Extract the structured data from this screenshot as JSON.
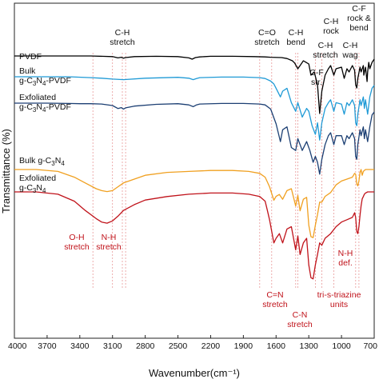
{
  "chart_data": {
    "type": "line",
    "xlabel": "Wavenumber(cm⁻¹)",
    "ylabel": "Transmittance (%)",
    "xlim": [
      4000,
      700
    ],
    "x_reversed": true,
    "x_ticks": [
      "4000",
      "3700",
      "3400",
      "3100",
      "2800",
      "2500",
      "2200",
      "1900",
      "1600",
      "1300",
      "1000",
      "700"
    ],
    "y_ticks": "none",
    "grid": false,
    "series": [
      {
        "name": "PVDF",
        "color": "#000000",
        "x": [
          4000,
          3700,
          3500,
          3300,
          3100,
          3050,
          3020,
          3000,
          2980,
          2900,
          2700,
          2500,
          2400,
          2370,
          2340,
          2300,
          2200,
          2000,
          1800,
          1700,
          1650,
          1550,
          1500,
          1450,
          1430,
          1400,
          1380,
          1350,
          1300,
          1280,
          1250,
          1220,
          1200,
          1180,
          1150,
          1120,
          1100,
          1070,
          1050,
          1000,
          975,
          950,
          930,
          900,
          880,
          870,
          860,
          850,
          830,
          820,
          800,
          795,
          780,
          765,
          760,
          750,
          740,
          720,
          700
        ],
        "y": [
          0.0,
          0.0,
          0.0,
          0.0,
          0.2,
          0.6,
          0.4,
          0.7,
          0.5,
          0.2,
          0.1,
          0.2,
          0.6,
          1.0,
          0.5,
          0.3,
          0.1,
          0.1,
          0.2,
          0.3,
          0.4,
          0.5,
          0.8,
          1.5,
          2.2,
          4.0,
          3.0,
          1.5,
          2.5,
          6.0,
          5.0,
          9.0,
          18.0,
          11.0,
          6.0,
          4.0,
          3.0,
          6.0,
          4.0,
          3.5,
          7.0,
          4.0,
          5.0,
          3.0,
          4.5,
          9.0,
          10.0,
          7.0,
          3.5,
          5.0,
          3.0,
          6.0,
          3.5,
          8.0,
          5.0,
          2.0,
          4.0,
          2.0,
          1.0
        ]
      },
      {
        "name": "Bulk g-C3N4-PVDF",
        "color": "#1f9ad6",
        "x": [
          4000,
          3700,
          3500,
          3300,
          3200,
          3100,
          3000,
          2800,
          2500,
          2400,
          2360,
          2330,
          2300,
          2100,
          1900,
          1750,
          1700,
          1650,
          1620,
          1600,
          1560,
          1540,
          1500,
          1460,
          1420,
          1400,
          1360,
          1320,
          1300,
          1270,
          1240,
          1220,
          1200,
          1180,
          1150,
          1120,
          1100,
          1070,
          1050,
          1000,
          975,
          950,
          930,
          900,
          880,
          870,
          860,
          850,
          830,
          820,
          800,
          790,
          780,
          760,
          740,
          720,
          700
        ],
        "y": [
          0.0,
          0.0,
          0.0,
          0.3,
          0.5,
          0.8,
          1.0,
          0.5,
          0.2,
          0.5,
          1.0,
          0.6,
          0.3,
          0.1,
          0.1,
          0.3,
          0.6,
          1.5,
          2.5,
          4.0,
          7.0,
          5.0,
          4.0,
          9.0,
          12.0,
          9.0,
          14.0,
          11.0,
          12.0,
          17.0,
          20.0,
          16.0,
          22.0,
          16.0,
          11.0,
          9.0,
          8.0,
          12.0,
          9.0,
          9.5,
          13.0,
          9.0,
          10.0,
          8.0,
          10.0,
          16.0,
          17.0,
          13.0,
          8.0,
          10.0,
          7.0,
          11.0,
          8.0,
          13.0,
          7.0,
          4.0,
          3.0
        ]
      },
      {
        "name": "Exfoliated g-C3N4-PVDF",
        "color": "#1c3f73",
        "x": [
          4000,
          3700,
          3500,
          3400,
          3300,
          3200,
          3100,
          3050,
          3020,
          3000,
          2980,
          2900,
          2700,
          2500,
          2400,
          2360,
          2330,
          2300,
          2100,
          1900,
          1750,
          1700,
          1650,
          1600,
          1560,
          1540,
          1500,
          1460,
          1420,
          1400,
          1360,
          1320,
          1290,
          1260,
          1240,
          1220,
          1200,
          1180,
          1150,
          1120,
          1100,
          1070,
          1050,
          1000,
          975,
          950,
          930,
          900,
          880,
          870,
          860,
          850,
          830,
          820,
          800,
          790,
          780,
          760,
          740,
          720,
          700
        ],
        "y": [
          0.0,
          0.0,
          0.1,
          0.2,
          0.2,
          0.3,
          0.8,
          1.8,
          1.5,
          2.0,
          1.6,
          1.0,
          0.4,
          0.2,
          0.6,
          1.2,
          0.6,
          0.3,
          0.1,
          0.1,
          0.3,
          0.6,
          2.0,
          7.0,
          13.0,
          9.0,
          8.0,
          15.0,
          16.0,
          12.0,
          16.0,
          13.0,
          16.0,
          20.0,
          18.0,
          20.0,
          24.0,
          19.0,
          14.0,
          11.0,
          10.0,
          14.0,
          11.0,
          11.0,
          14.0,
          11.0,
          12.0,
          10.0,
          12.0,
          18.0,
          19.0,
          14.0,
          9.0,
          11.0,
          8.0,
          12.0,
          9.0,
          13.0,
          8.0,
          4.0,
          3.0
        ]
      },
      {
        "name": "Bulk g-C3N4",
        "color": "#f0a020",
        "x": [
          4000,
          3800,
          3600,
          3450,
          3350,
          3250,
          3200,
          3150,
          3100,
          3050,
          3000,
          2900,
          2800,
          2600,
          2400,
          2200,
          2000,
          1850,
          1750,
          1700,
          1680,
          1660,
          1640,
          1620,
          1600,
          1570,
          1540,
          1500,
          1460,
          1420,
          1400,
          1380,
          1350,
          1320,
          1300,
          1280,
          1260,
          1240,
          1220,
          1200,
          1180,
          1150,
          1100,
          1050,
          1000,
          950,
          900,
          880,
          870,
          860,
          850,
          840,
          830,
          820,
          810,
          800,
          790,
          780,
          760,
          740,
          720,
          700
        ],
        "y": [
          0.0,
          0.0,
          0.2,
          0.8,
          1.4,
          2.0,
          2.2,
          2.3,
          2.2,
          1.8,
          1.4,
          1.0,
          0.6,
          0.3,
          0.2,
          0.1,
          0.1,
          0.2,
          0.4,
          0.8,
          1.3,
          1.8,
          2.5,
          3.2,
          2.8,
          2.6,
          3.1,
          2.2,
          2.0,
          3.8,
          2.7,
          4.3,
          3.1,
          2.9,
          5.8,
          7.0,
          7.1,
          5.8,
          4.7,
          3.4,
          3.4,
          2.8,
          2.4,
          1.6,
          1.2,
          1.0,
          0.8,
          0.4,
          0.5,
          1.5,
          1.7,
          1.2,
          0.3,
          0.0,
          0.6,
          0.2,
          0.1,
          0.0,
          0.0,
          0.0,
          0.0,
          0.0
        ]
      },
      {
        "name": "Exfoliated g-C3N4",
        "color": "#c0121a",
        "x": [
          4000,
          3800,
          3600,
          3450,
          3350,
          3250,
          3200,
          3150,
          3100,
          3050,
          3000,
          2900,
          2800,
          2600,
          2400,
          2200,
          2000,
          1850,
          1750,
          1700,
          1680,
          1660,
          1640,
          1620,
          1600,
          1570,
          1540,
          1500,
          1460,
          1420,
          1400,
          1380,
          1350,
          1320,
          1300,
          1280,
          1260,
          1240,
          1220,
          1200,
          1180,
          1150,
          1100,
          1050,
          1000,
          950,
          900,
          880,
          870,
          860,
          850,
          840,
          830,
          820,
          810,
          800,
          790,
          780,
          760,
          740,
          720,
          700
        ],
        "y": [
          0.0,
          0.0,
          0.2,
          0.8,
          1.6,
          2.3,
          2.6,
          2.7,
          2.5,
          2.1,
          1.6,
          1.1,
          0.7,
          0.4,
          0.2,
          0.1,
          0.1,
          0.2,
          0.4,
          0.8,
          1.6,
          2.4,
          3.4,
          4.4,
          4.0,
          3.6,
          4.4,
          3.2,
          3.0,
          5.0,
          3.8,
          5.4,
          4.4,
          4.0,
          6.3,
          7.4,
          7.5,
          6.3,
          5.4,
          4.4,
          4.6,
          4.0,
          3.6,
          3.0,
          2.6,
          2.4,
          2.2,
          1.8,
          2.2,
          3.4,
          3.6,
          3.0,
          2.0,
          1.2,
          0.6,
          0.4,
          0.2,
          0.1,
          0.0,
          0.0,
          0.0,
          0.0
        ]
      }
    ],
    "series_labels": {
      "pvdf": "PVDF",
      "bulk_pvdf_l1": "Bulk",
      "bulk_pvdf_l2_pre": "g-C",
      "bulk_pvdf_l2_s1": "3",
      "bulk_pvdf_l2_mid": "N",
      "bulk_pvdf_l2_s2": "4",
      "bulk_pvdf_l2_post": "-PVDF",
      "exf_pvdf_l1": "Exfoliated",
      "exf_pvdf_l2_pre": "g-C",
      "exf_pvdf_l2_s1": "3",
      "exf_pvdf_l2_mid": "N",
      "exf_pvdf_l2_s2": "4",
      "exf_pvdf_l2_post": "-PVDF",
      "bulk_pre": "Bulk g-C",
      "bulk_s1": "3",
      "bulk_mid": "N",
      "bulk_s2": "4",
      "exf_l1": "Exfoliated",
      "exf_l2_pre": "g-C",
      "exf_l2_s1": "3",
      "exf_l2_mid": "N",
      "exf_l2_s2": "4"
    },
    "annotations": {
      "ch_stretch_top_1": "C-H",
      "ch_stretch_top_2": "stretch",
      "co_stretch_1": "C=O",
      "co_stretch_2": "stretch",
      "ch_bend_1": "C-H",
      "ch_bend_2": "bend",
      "ch_rock_1": "C-H",
      "ch_rock_2": "rock",
      "cf_rb_1": "C-F",
      "cf_rb_2": "rock &",
      "cf_rb_3": "bend",
      "ch_stretch_r_1": "C-H",
      "ch_stretch_r_2": "stretch",
      "ch_wag_1": "C-H",
      "ch_wag_2": "wag",
      "cf_str_1": "C-F",
      "cf_str_2": "str.",
      "oh_1": "O-H",
      "oh_2": "stretch",
      "nh_1": "N-H",
      "nh_2": "stretch",
      "cn_double_1": "C=N",
      "cn_double_2": "stretch",
      "cn_1": "C-N",
      "cn_2": "stretch",
      "triazine_1": "tri-s-triazine",
      "triazine_2": "units",
      "nh_def_1": "N-H",
      "nh_def_2": "def."
    },
    "reference_lines": [
      3280,
      3100,
      3010,
      2980,
      1750,
      1640,
      1420,
      1400,
      1240,
      1180,
      1070,
      870,
      840
    ]
  }
}
